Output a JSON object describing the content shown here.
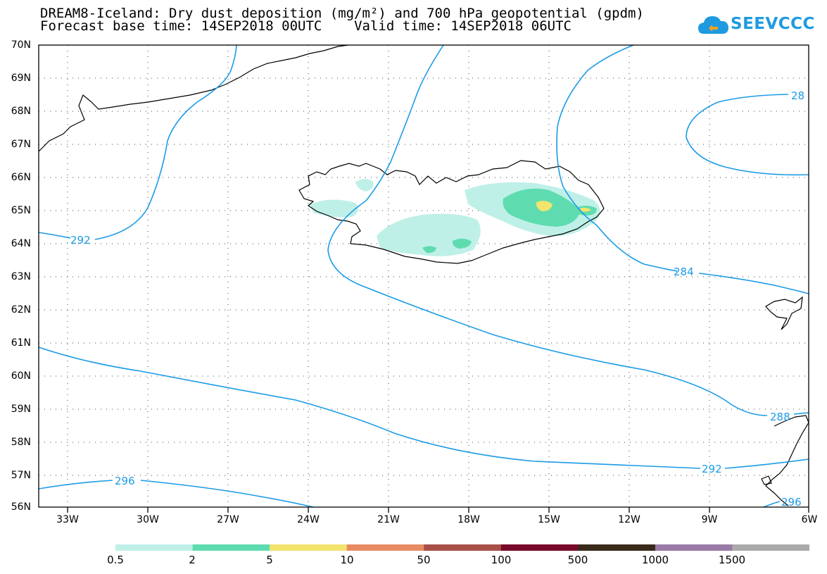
{
  "header": {
    "line1": "DREAM8-Iceland: Dry dust deposition (mg/m²) and 700 hPa geopotential (gpdm)",
    "line2": "Forecast base time: 14SEP2018 00UTC    Valid time: 14SEP2018 06UTC"
  },
  "logo": {
    "text": "SEEVCCC",
    "color": "#1e9be0",
    "icon": "cloud-icon"
  },
  "latitudes": [
    "70N",
    "69N",
    "68N",
    "67N",
    "66N",
    "65N",
    "64N",
    "63N",
    "62N",
    "61N",
    "60N",
    "59N",
    "58N",
    "57N",
    "56N"
  ],
  "longitudes": [
    "33W",
    "30W",
    "27W",
    "24W",
    "21W",
    "18W",
    "15W",
    "12W",
    "9W",
    "6W"
  ],
  "contour_labels": [
    "292",
    "28",
    "284",
    "288",
    "292",
    "296",
    "296"
  ],
  "contour_color": "#1a9be6",
  "colorbar": {
    "colors": [
      "#bff0e8",
      "#5edcb0",
      "#f2e46c",
      "#e88c64",
      "#a85048",
      "#7a0a2a",
      "#3a2a1a",
      "#9a7aa6",
      "#aaaaaa"
    ],
    "labels": [
      "0.5",
      "2",
      "5",
      "10",
      "50",
      "100",
      "500",
      "1000",
      "1500"
    ]
  }
}
